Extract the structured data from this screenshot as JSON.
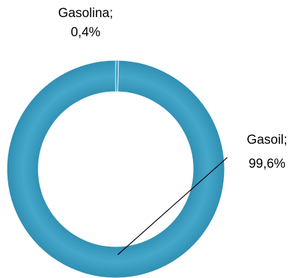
{
  "chart_data": {
    "type": "donut",
    "categories": [
      "Gasolina;",
      "Gasoil;"
    ],
    "values": [
      0.4,
      99.6
    ],
    "value_labels": [
      "0,4%",
      "99,6%"
    ],
    "color": "#3a9dc1"
  }
}
